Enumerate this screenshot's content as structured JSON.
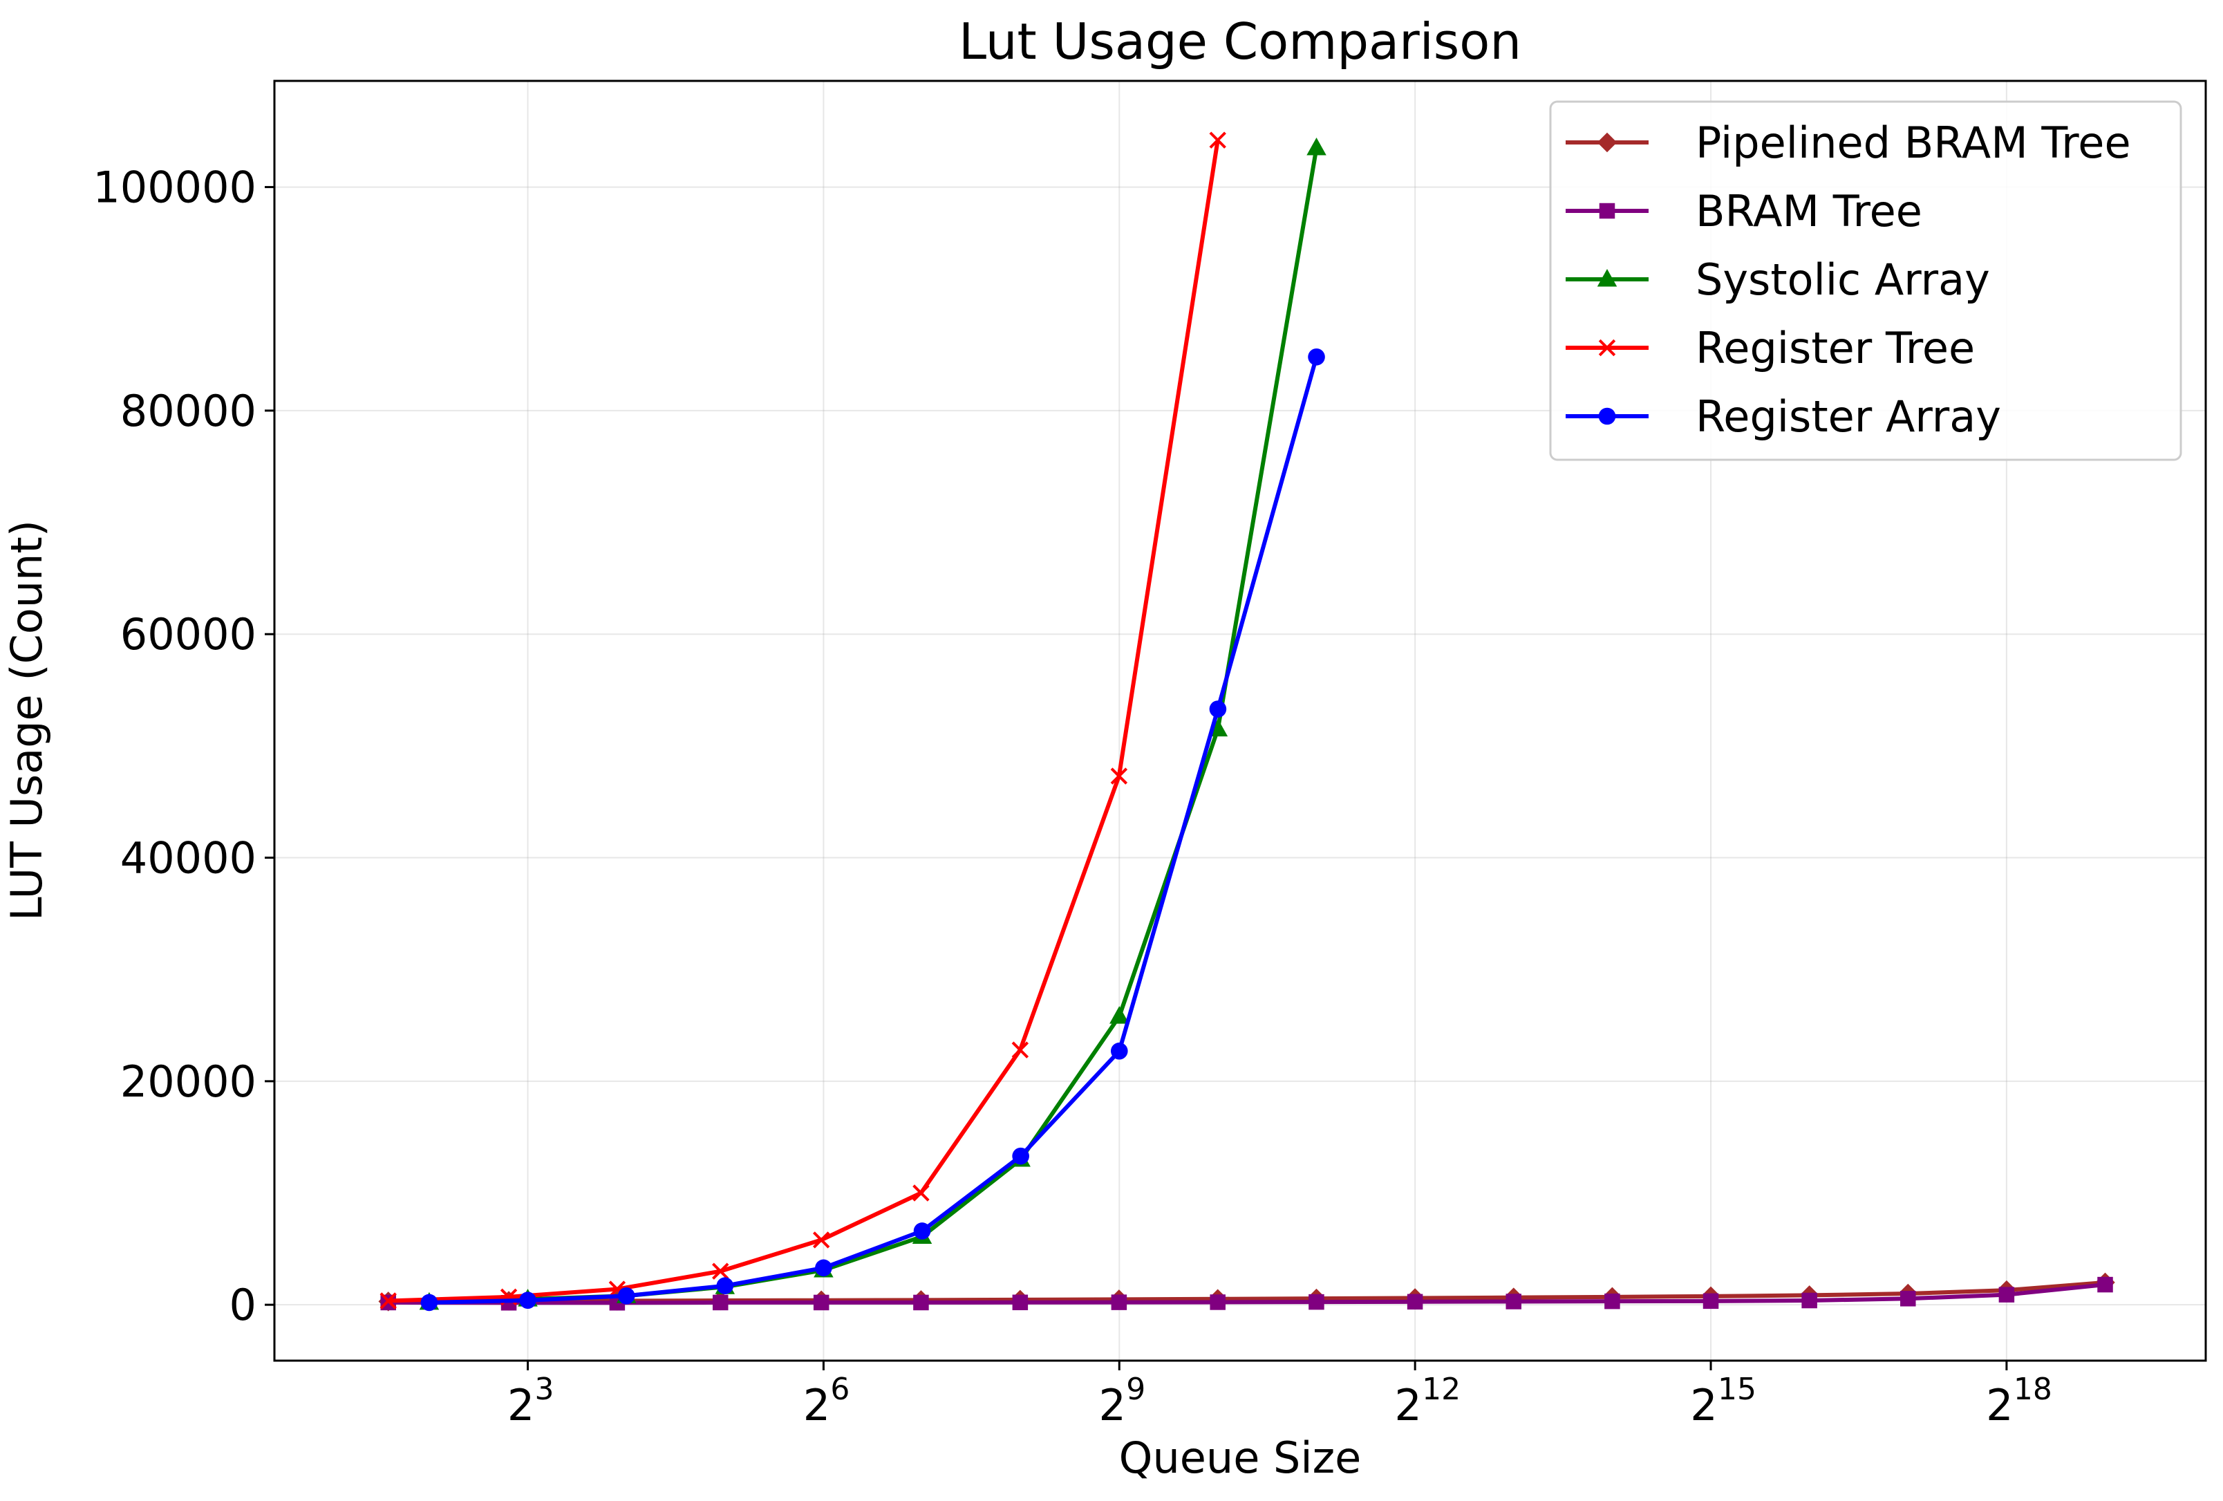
{
  "chart_data": {
    "type": "line",
    "title": "Lut Usage Comparison",
    "xlabel": "Queue Size",
    "ylabel": "LUT Usage (Count)",
    "x_scale": "log2",
    "xlim_exponent": [
      0.43,
      20.02
    ],
    "ylim": [
      -5000,
      109500
    ],
    "x_ticks": [
      {
        "exponent": 3,
        "base": "2",
        "power": "3"
      },
      {
        "exponent": 6,
        "base": "2",
        "power": "6"
      },
      {
        "exponent": 9,
        "base": "2",
        "power": "9"
      },
      {
        "exponent": 12,
        "base": "2",
        "power": "12"
      },
      {
        "exponent": 15,
        "base": "2",
        "power": "15"
      },
      {
        "exponent": 18,
        "base": "2",
        "power": "18"
      }
    ],
    "y_ticks": [
      {
        "value": 0,
        "label": "0"
      },
      {
        "value": 20000,
        "label": "20000"
      },
      {
        "value": 40000,
        "label": "40000"
      },
      {
        "value": 60000,
        "label": "60000"
      },
      {
        "value": 80000,
        "label": "80000"
      },
      {
        "value": 100000,
        "label": "100000"
      }
    ],
    "grid": true,
    "legend_position": "top-right",
    "series": [
      {
        "name": "Pipelined BRAM Tree",
        "color": "#a52a2a",
        "marker": "diamond",
        "x": [
          3,
          7,
          15,
          31,
          63,
          127,
          255,
          511,
          1023,
          2047,
          4095,
          8191,
          16383,
          32767,
          65535,
          131071,
          262143,
          524287
        ],
        "y": [
          300,
          350,
          350,
          380,
          400,
          420,
          450,
          480,
          520,
          560,
          600,
          650,
          700,
          760,
          850,
          1000,
          1300,
          2000
        ]
      },
      {
        "name": "BRAM Tree",
        "color": "#800080",
        "marker": "square",
        "x": [
          3,
          7,
          15,
          31,
          63,
          127,
          255,
          511,
          1023,
          2047,
          4095,
          8191,
          16383,
          32767,
          65535,
          131071,
          262143,
          524287
        ],
        "y": [
          200,
          180,
          180,
          200,
          200,
          200,
          210,
          220,
          230,
          250,
          270,
          290,
          310,
          330,
          380,
          550,
          900,
          1800
        ]
      },
      {
        "name": "Systolic Array",
        "color": "#008000",
        "marker": "triangle",
        "x": [
          4,
          8,
          16,
          32,
          64,
          128,
          256,
          512,
          1024,
          2048
        ],
        "y": [
          200,
          500,
          800,
          1600,
          3100,
          6100,
          13000,
          25800,
          51500,
          103500
        ]
      },
      {
        "name": "Register Tree",
        "color": "#ff0000",
        "marker": "x",
        "x": [
          3,
          7,
          15,
          31,
          63,
          127,
          255,
          511,
          1023
        ],
        "y": [
          350,
          700,
          1400,
          3000,
          5800,
          10000,
          22800,
          47300,
          104200
        ]
      },
      {
        "name": "Register Array",
        "color": "#0000ff",
        "marker": "circle",
        "x": [
          4,
          8,
          16,
          32,
          64,
          128,
          256,
          512,
          1024,
          2048
        ],
        "y": [
          200,
          400,
          800,
          1700,
          3300,
          6600,
          13300,
          22700,
          53300,
          84800
        ]
      }
    ]
  }
}
